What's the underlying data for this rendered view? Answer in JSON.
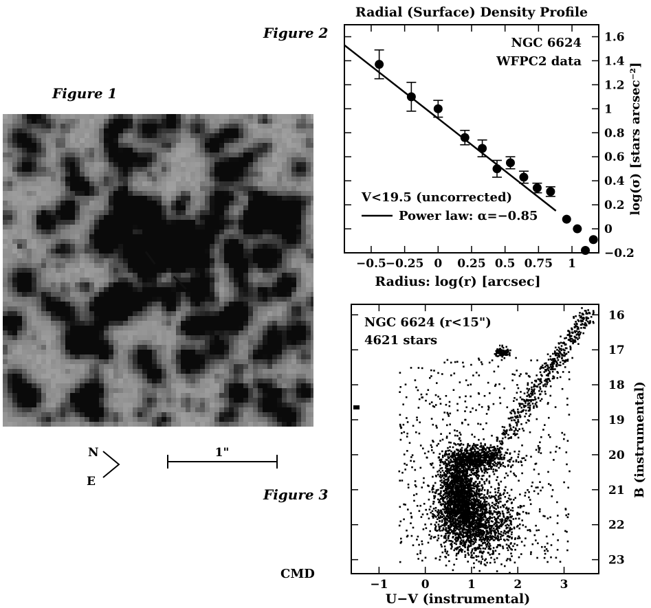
{
  "figure1": {
    "label": "Figure 1",
    "compass": {
      "north": "N",
      "east": "E"
    },
    "scale_bar_label": "1\""
  },
  "figure2": {
    "label": "Figure 2",
    "annotations": [
      "NGC 6624",
      "WFPC2 data"
    ],
    "legend": {
      "points_label": "V<19.5 (uncorrected)",
      "line_label": "Power law: α=−0.85"
    },
    "line_color": "#000000"
  },
  "figure3": {
    "label": "Figure 3",
    "sublabel": "CMD",
    "annotations": [
      "NGC 6624 (r<15\")",
      "4621 stars"
    ]
  },
  "chart_data": [
    {
      "type": "scatter",
      "title": "Radial (Surface) Density Profile",
      "xlabel": "Radius: log(r) [arcsec]",
      "ylabel": "log(σ) [stars arcsec⁻²]",
      "xlim": [
        -0.7,
        1.2
      ],
      "ylim": [
        -0.2,
        1.7
      ],
      "x_ticks": [
        -0.5,
        -0.25,
        0,
        0.25,
        0.5,
        0.75,
        1
      ],
      "x_tick_labels": [
        "−0.5",
        "−0.25",
        "0",
        "0.25",
        "0.5",
        "0.75",
        "1"
      ],
      "y_ticks": [
        -0.2,
        0,
        0.2,
        0.4,
        0.6,
        0.8,
        1,
        1.2,
        1.4,
        1.6
      ],
      "y_tick_labels": [
        "−0.2",
        "0",
        "0.2",
        "0.4",
        "0.6",
        "0.8",
        "1",
        "1.2",
        "1.4",
        "1.6"
      ],
      "y_axis_side": "right",
      "series": [
        {
          "name": "V<19.5 (uncorrected)",
          "x": [
            -0.44,
            -0.2,
            0.0,
            0.2,
            0.33,
            0.44,
            0.54,
            0.64,
            0.74,
            0.84,
            0.96,
            1.04,
            1.1,
            1.16
          ],
          "y": [
            1.37,
            1.1,
            1.0,
            0.76,
            0.67,
            0.5,
            0.55,
            0.43,
            0.34,
            0.31,
            0.08,
            0.0,
            -0.18,
            -0.09
          ],
          "yerr": [
            0.12,
            0.12,
            0.07,
            0.06,
            0.07,
            0.07,
            0.05,
            0.05,
            0.04,
            0.04,
            0.0,
            0.0,
            0.0,
            0.0
          ]
        },
        {
          "name": "Power law: α=−0.85",
          "type": "line",
          "x": [
            -0.7,
            0.88
          ],
          "y": [
            1.53,
            0.15
          ]
        }
      ]
    },
    {
      "type": "scatter",
      "xlabel": "U−V (instrumental)",
      "ylabel": "B (instrumental)",
      "xlim": [
        -1.6,
        3.75
      ],
      "ylim": [
        23.4,
        15.7
      ],
      "x_ticks": [
        -1,
        0,
        1,
        2,
        3
      ],
      "x_tick_labels": [
        "−1",
        "0",
        "1",
        "2",
        "3"
      ],
      "y_ticks": [
        16,
        17,
        18,
        19,
        20,
        21,
        22,
        23
      ],
      "y_tick_labels": [
        "16",
        "17",
        "18",
        "19",
        "20",
        "21",
        "22",
        "23"
      ],
      "y_axis_side": "right",
      "series": [
        {
          "name": "",
          "total_count": 4621,
          "components": [
            {
              "feature": "main sequence turnoff",
              "center": [
                0.72,
                21.0
              ],
              "spread": [
                0.22,
                0.6
              ],
              "count": 1500
            },
            {
              "feature": "main sequence",
              "center": [
                1.05,
                21.9
              ],
              "spread": [
                0.45,
                0.5
              ],
              "count": 1400
            },
            {
              "feature": "subgiant branch",
              "center": [
                1.1,
                20.1
              ],
              "spread": [
                0.35,
                0.18
              ],
              "count": 550
            },
            {
              "feature": "red giant branch",
              "from": [
                1.35,
                20.2
              ],
              "to": [
                3.5,
                15.9
              ],
              "width": 0.12,
              "count": 520
            },
            {
              "feature": "red clump",
              "center": [
                1.65,
                17.05
              ],
              "spread": [
                0.07,
                0.08
              ],
              "count": 90
            },
            {
              "feature": "field stars",
              "range_x": [
                -0.6,
                3.1
              ],
              "range_y": [
                17.2,
                23.1
              ],
              "count": 561
            }
          ]
        }
      ]
    }
  ]
}
